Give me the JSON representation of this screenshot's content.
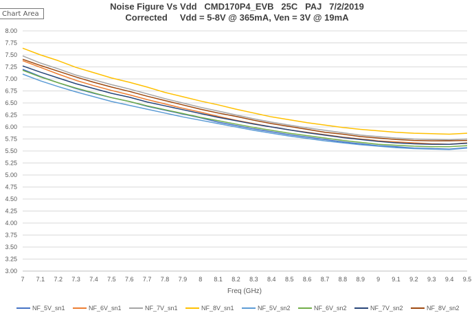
{
  "tooltip": "Chart Area",
  "chart_data": {
    "type": "line",
    "title": "Noise Figure Vs Vdd   CMD170P4_EVB   25C   PAJ   7/2/2019",
    "subtitle": "Corrected     Vdd = 5-8V @ 365mA, Ven = 3V @ 19mA",
    "xlabel": "Freq (GHz)",
    "ylabel": "",
    "xlim": [
      7,
      9.5
    ],
    "ylim": [
      3.0,
      8.0
    ],
    "grid": true,
    "legend_position": "bottom",
    "x": [
      7.0,
      7.1,
      7.2,
      7.3,
      7.4,
      7.5,
      7.6,
      7.7,
      7.8,
      7.9,
      8.0,
      8.1,
      8.2,
      8.3,
      8.4,
      8.5,
      8.6,
      8.7,
      8.8,
      8.9,
      9.0,
      9.1,
      9.2,
      9.3,
      9.4,
      9.5
    ],
    "x_ticks": [
      "7",
      "7.1",
      "7.2",
      "7.3",
      "7.4",
      "7.5",
      "7.6",
      "7.7",
      "7.8",
      "7.9",
      "8",
      "8.1",
      "8.2",
      "8.3",
      "8.4",
      "8.5",
      "8.6",
      "8.7",
      "8.8",
      "8.9",
      "9",
      "9.1",
      "9.2",
      "9.3",
      "9.4",
      "9.5"
    ],
    "y_ticks": [
      "3.00",
      "3.25",
      "3.50",
      "3.75",
      "4.00",
      "4.25",
      "4.50",
      "4.75",
      "5.00",
      "5.25",
      "5.50",
      "5.75",
      "6.00",
      "6.25",
      "6.50",
      "6.75",
      "7.00",
      "7.25",
      "7.50",
      "7.75",
      "8.00"
    ],
    "series": [
      {
        "name": "NF_5V_sn1",
        "color": "#4472C4",
        "values": [
          7.2,
          7.05,
          6.92,
          6.8,
          6.7,
          6.61,
          6.53,
          6.43,
          6.35,
          6.27,
          6.19,
          6.1,
          6.03,
          5.96,
          5.9,
          5.84,
          5.79,
          5.74,
          5.69,
          5.65,
          5.61,
          5.59,
          5.56,
          5.55,
          5.54,
          5.57
        ]
      },
      {
        "name": "NF_6V_sn1",
        "color": "#ED7D31",
        "values": [
          7.38,
          7.24,
          7.1,
          6.97,
          6.86,
          6.76,
          6.67,
          6.57,
          6.48,
          6.39,
          6.31,
          6.22,
          6.14,
          6.07,
          6.0,
          5.94,
          5.89,
          5.84,
          5.79,
          5.75,
          5.71,
          5.69,
          5.67,
          5.65,
          5.64,
          5.67
        ]
      },
      {
        "name": "NF_7V_sn1",
        "color": "#A5A5A5",
        "values": [
          7.48,
          7.33,
          7.21,
          7.08,
          6.98,
          6.88,
          6.79,
          6.69,
          6.59,
          6.5,
          6.41,
          6.33,
          6.25,
          6.17,
          6.1,
          6.04,
          5.98,
          5.93,
          5.88,
          5.83,
          5.8,
          5.77,
          5.75,
          5.74,
          5.73,
          5.75
        ]
      },
      {
        "name": "NF_8V_sn1",
        "color": "#FFC000",
        "values": [
          7.64,
          7.5,
          7.38,
          7.24,
          7.13,
          7.02,
          6.93,
          6.83,
          6.72,
          6.63,
          6.54,
          6.46,
          6.37,
          6.29,
          6.21,
          6.15,
          6.09,
          6.04,
          5.99,
          5.95,
          5.92,
          5.89,
          5.87,
          5.86,
          5.85,
          5.87
        ]
      },
      {
        "name": "NF_5V_sn2",
        "color": "#5B9BD5",
        "values": [
          7.1,
          6.96,
          6.84,
          6.73,
          6.63,
          6.53,
          6.45,
          6.37,
          6.29,
          6.21,
          6.14,
          6.07,
          6.0,
          5.93,
          5.87,
          5.81,
          5.76,
          5.71,
          5.67,
          5.63,
          5.6,
          5.57,
          5.55,
          5.54,
          5.53,
          5.56
        ]
      },
      {
        "name": "NF_6V_sn2",
        "color": "#70AD47",
        "values": [
          7.18,
          7.04,
          6.92,
          6.81,
          6.71,
          6.61,
          6.53,
          6.44,
          6.36,
          6.28,
          6.2,
          6.13,
          6.06,
          5.99,
          5.93,
          5.87,
          5.82,
          5.77,
          5.72,
          5.68,
          5.64,
          5.62,
          5.6,
          5.59,
          5.59,
          5.61
        ]
      },
      {
        "name": "NF_7V_sn2",
        "color": "#264478",
        "values": [
          7.27,
          7.14,
          7.02,
          6.9,
          6.8,
          6.7,
          6.62,
          6.52,
          6.44,
          6.36,
          6.28,
          6.2,
          6.13,
          6.06,
          6.0,
          5.94,
          5.88,
          5.83,
          5.78,
          5.74,
          5.7,
          5.67,
          5.65,
          5.64,
          5.64,
          5.66
        ]
      },
      {
        "name": "NF_8V_sn2",
        "color": "#9E480E",
        "values": [
          7.41,
          7.28,
          7.16,
          7.04,
          6.93,
          6.83,
          6.74,
          6.64,
          6.55,
          6.46,
          6.37,
          6.29,
          6.22,
          6.14,
          6.07,
          6.01,
          5.95,
          5.89,
          5.85,
          5.8,
          5.77,
          5.74,
          5.72,
          5.71,
          5.71,
          5.72
        ]
      }
    ]
  }
}
